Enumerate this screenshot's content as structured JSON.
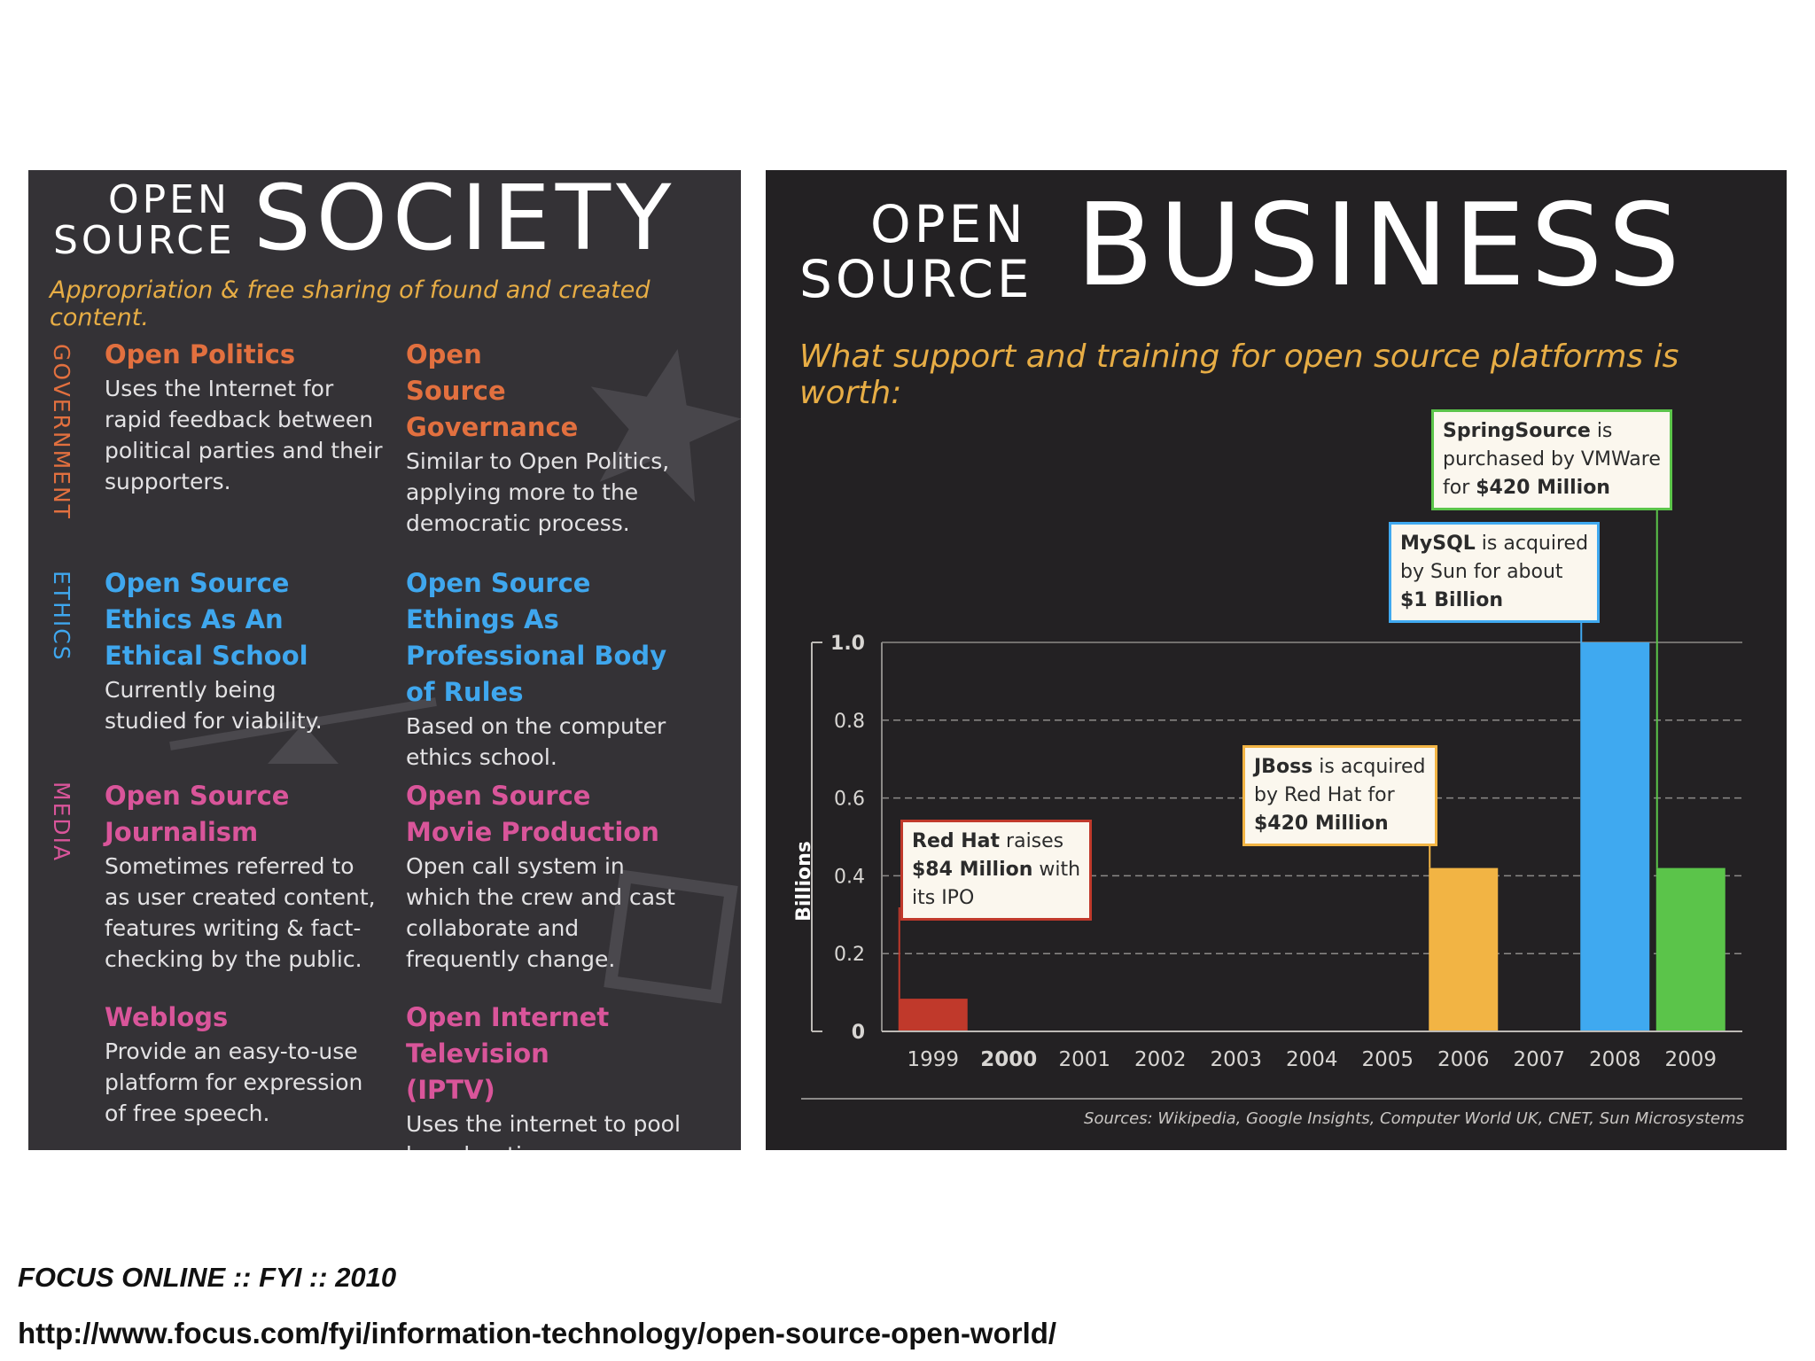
{
  "society": {
    "title_small_1": "OPEN",
    "title_small_2": "SOURCE",
    "title_big": "SOCIETY",
    "tagline": "Appropriation & free sharing of found and created content.",
    "categories": {
      "government": "GOVERNMENT",
      "ethics": "ETHICS",
      "media": "MEDIA"
    },
    "items": [
      {
        "title": "Open Politics",
        "body": "Uses the Internet for rapid feedback between political parties and their supporters."
      },
      {
        "title": "Open Source Governance",
        "body": "Similar to Open Politics, applying more to the democratic process."
      },
      {
        "title": "Open Source Ethics As An Ethical School",
        "body": "Currently being studied for viability."
      },
      {
        "title": "Open Source Ethings As Professional Body of Rules",
        "body": "Based on the computer ethics school."
      },
      {
        "title": "Open Source Journalism",
        "body": "Sometimes referred to as user created content, features writing & fact-checking by the public."
      },
      {
        "title": "Open Source Movie Production",
        "body": "Open call system in which the crew and cast collaborate and frequently change."
      },
      {
        "title": "Weblogs",
        "body": "Provide an easy-to-use platform for expression of free speech."
      },
      {
        "title": "Open Internet Television (IPTV)",
        "body": "Uses the internet to pool broadcasting resources."
      }
    ],
    "colors": {
      "government": "#e2703f",
      "ethics": "#3fa7ee",
      "media": "#d9559a"
    }
  },
  "business": {
    "title_small_1": "OPEN",
    "title_small_2": "SOURCE",
    "title_big": "BUSINESS",
    "tagline": "What support and training for open source platforms is worth:",
    "sources": "Sources: Wikipedia, Google Insights, Computer World UK, CNET, Sun Microsystems",
    "callouts": {
      "redhat": {
        "name": "Red Hat",
        "rest1": " raises",
        "line2": "$84 Million",
        "rest2": " with",
        "line3": "its IPO"
      },
      "jboss": {
        "name": "JBoss",
        "rest1": " is acquired",
        "line2": "by Red Hat for",
        "line3": "$420 Million"
      },
      "mysql": {
        "name": "MySQL",
        "rest1": " is acquired",
        "line2": "by Sun for about",
        "line3": "$1 Billion"
      },
      "springsource": {
        "name": "SpringSource",
        "rest1": " is",
        "line2": "purchased by VMWare",
        "line3a": "for ",
        "line3b": "$420 Million"
      }
    }
  },
  "chart_data": {
    "type": "bar",
    "ylabel": "Billions",
    "ylim": [
      0,
      1.0
    ],
    "yticks": [
      "0",
      "0.2",
      "0.4",
      "0.6",
      "0.8",
      "1.0"
    ],
    "categories": [
      "1999",
      "2000",
      "2001",
      "2002",
      "2003",
      "2004",
      "2005",
      "2006",
      "2007",
      "2008",
      "2009"
    ],
    "values": [
      0.084,
      0,
      0,
      0,
      0,
      0,
      0,
      0.42,
      0,
      1.0,
      0.42
    ],
    "bar_colors": [
      "#c0392b",
      "",
      "",
      "",
      "",
      "",
      "",
      "#f2b444",
      "",
      "#3fa9f0",
      "#5bc44a"
    ],
    "grid": true
  },
  "footer": {
    "source": "FOCUS ONLINE :: FYI :: 2010",
    "url": "http://www.focus.com/fyi/information-technology/open-source-open-world/"
  }
}
